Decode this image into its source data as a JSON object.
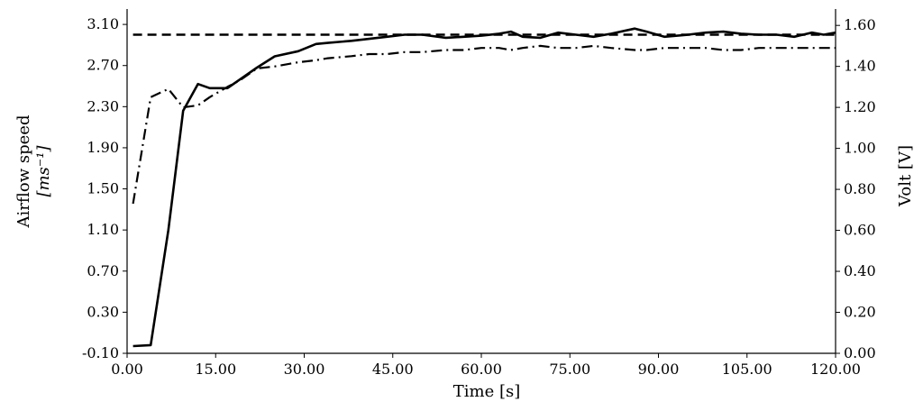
{
  "chart_data": {
    "type": "line",
    "xlabel": "Time [s]",
    "ylabel_left": {
      "line1": "Airflow speed",
      "line2": "[ms⁻¹]"
    },
    "ylabel_right": "Volt [V]",
    "xlim": [
      0,
      120
    ],
    "ylim_left": [
      -0.1,
      3.25
    ],
    "ylim_right": [
      0,
      1.68
    ],
    "x_ticks": [
      "0.00",
      "15.00",
      "30.00",
      "45.00",
      "60.00",
      "75.00",
      "90.00",
      "105.00",
      "120.00"
    ],
    "y_left_ticks": [
      "-0.10",
      "0.30",
      "0.70",
      "1.10",
      "1.50",
      "1.90",
      "2.30",
      "2.70",
      "3.10"
    ],
    "y_right_ticks": [
      "0.00",
      "0.20",
      "0.40",
      "0.60",
      "0.80",
      "1.00",
      "1.20",
      "1.40",
      "1.60"
    ],
    "grid": false,
    "series": [
      {
        "style": "solid",
        "axis": "left",
        "x": [
          1,
          4,
          7,
          9.5,
          12,
          14,
          17,
          19,
          22,
          25,
          29,
          32,
          34,
          38,
          41,
          44,
          47,
          50,
          54,
          57,
          60,
          63,
          65,
          67,
          70,
          73,
          76,
          79,
          82,
          86,
          88,
          91,
          95,
          98,
          101,
          104,
          107,
          110,
          113,
          116,
          118,
          120
        ],
        "y": [
          -0.03,
          -0.02,
          1.1,
          2.26,
          2.52,
          2.48,
          2.48,
          2.56,
          2.68,
          2.79,
          2.84,
          2.91,
          2.92,
          2.94,
          2.96,
          2.98,
          3.0,
          3.0,
          2.97,
          2.98,
          2.99,
          3.01,
          3.03,
          2.98,
          2.97,
          3.02,
          3.0,
          2.98,
          3.01,
          3.06,
          3.03,
          2.98,
          3.0,
          3.02,
          3.03,
          3.01,
          3.0,
          3.0,
          2.98,
          3.02,
          3.0,
          3.02
        ]
      },
      {
        "style": "dash-dot",
        "axis": "right",
        "x": [
          1,
          4,
          7,
          9.5,
          12,
          14,
          17,
          19,
          22,
          25,
          29,
          32,
          34,
          38,
          41,
          44,
          47,
          50,
          54,
          57,
          60,
          63,
          65,
          67,
          70,
          73,
          76,
          79,
          82,
          86,
          88,
          91,
          95,
          98,
          101,
          104,
          107,
          110,
          113,
          116,
          118,
          120
        ],
        "y": [
          0.73,
          1.25,
          1.29,
          1.2,
          1.21,
          1.25,
          1.3,
          1.33,
          1.39,
          1.4,
          1.42,
          1.43,
          1.44,
          1.45,
          1.46,
          1.46,
          1.47,
          1.47,
          1.48,
          1.48,
          1.49,
          1.49,
          1.48,
          1.49,
          1.5,
          1.49,
          1.49,
          1.5,
          1.49,
          1.48,
          1.48,
          1.49,
          1.49,
          1.49,
          1.48,
          1.48,
          1.49,
          1.49,
          1.49,
          1.49,
          1.49,
          1.49
        ]
      },
      {
        "style": "dashed",
        "axis": "left",
        "x": [
          1,
          120
        ],
        "y": [
          3.0,
          3.0
        ]
      }
    ]
  }
}
